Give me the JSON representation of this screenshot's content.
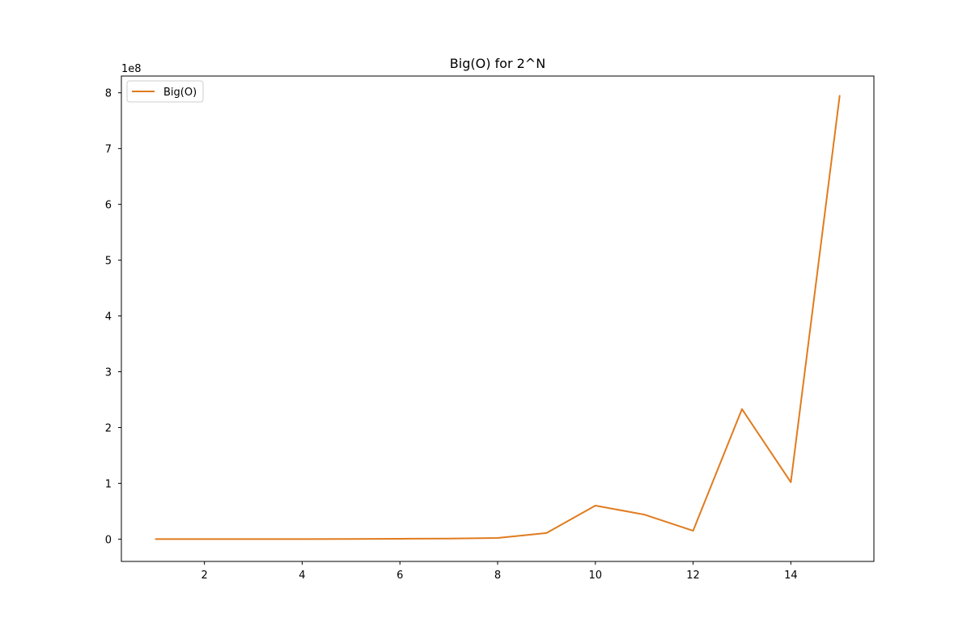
{
  "chart_data": {
    "type": "line",
    "title": "Big(O) for 2^N",
    "xlabel": "",
    "ylabel": "",
    "offset_label": "1e8",
    "xlim": [
      0.3,
      15.7
    ],
    "ylim": [
      -0.4,
      8.3
    ],
    "x_ticks": [
      2,
      4,
      6,
      8,
      10,
      12,
      14
    ],
    "y_ticks": [
      0,
      1,
      2,
      3,
      4,
      5,
      6,
      7,
      8
    ],
    "grid": false,
    "legend_position": "upper-left",
    "series": [
      {
        "name": "Big(O)",
        "color": "#e07b1e",
        "x": [
          1,
          2,
          3,
          4,
          5,
          6,
          7,
          8,
          9,
          10,
          11,
          12,
          13,
          14,
          15
        ],
        "values": [
          0.0,
          0.0,
          0.0,
          0.0,
          0.003,
          0.006,
          0.01,
          0.02,
          0.11,
          0.6,
          0.44,
          0.15,
          2.33,
          1.02,
          7.95
        ]
      }
    ]
  }
}
